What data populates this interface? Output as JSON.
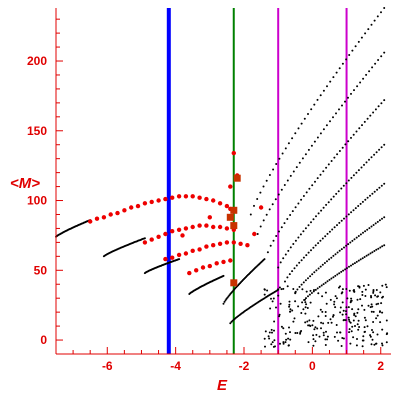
{
  "chart_data": {
    "type": "scatter",
    "title": "",
    "xlabel": "E",
    "ylabel": "<M>",
    "xlim": [
      -7.5,
      2.3
    ],
    "ylim": [
      -10,
      238
    ],
    "xticks": [
      -6,
      -4,
      -2,
      0,
      2
    ],
    "yticks": [
      0,
      50,
      100,
      150,
      200
    ],
    "colors": {
      "axis": "#e00000",
      "band_points": "#000000",
      "highlight_points": "#ee0000",
      "highlight_markers": "#c83200"
    },
    "vertical_lines": [
      {
        "x": -4.2,
        "color": "#0000ff"
      },
      {
        "x": -2.3,
        "color": "#008000"
      },
      {
        "x": -1.0,
        "color": "#cc00cc"
      },
      {
        "x": 1.0,
        "color": "#cc00cc"
      }
    ],
    "bands": [
      {
        "x_start": -7.5,
        "x_end": -6.5,
        "y_start": 74,
        "y_end": 86
      },
      {
        "x_start": -6.1,
        "x_end": -4.9,
        "y_start": 60,
        "y_end": 73
      },
      {
        "x_start": -4.9,
        "x_end": -3.9,
        "y_start": 48,
        "y_end": 58
      },
      {
        "x_start": -3.6,
        "x_end": -2.6,
        "y_start": 33,
        "y_end": 46
      },
      {
        "x_start": -1.8,
        "x_end": 2.1,
        "y_start": 90,
        "y_end": 238
      },
      {
        "x_start": -1.6,
        "x_end": 2.1,
        "y_start": 76,
        "y_end": 206
      },
      {
        "x_start": -1.3,
        "x_end": 2.1,
        "y_start": 63,
        "y_end": 172
      },
      {
        "x_start": -1.0,
        "x_end": 2.1,
        "y_start": 52,
        "y_end": 140
      },
      {
        "x_start": -0.8,
        "x_end": 2.1,
        "y_start": 42,
        "y_end": 112
      },
      {
        "x_start": -0.5,
        "x_end": 2.1,
        "y_start": 34,
        "y_end": 88
      },
      {
        "x_start": -0.3,
        "x_end": 2.1,
        "y_start": 27,
        "y_end": 68
      },
      {
        "x_start": -2.6,
        "x_end": -1.4,
        "y_start": 26,
        "y_end": 58
      },
      {
        "x_start": -2.4,
        "x_end": -1.0,
        "y_start": 12,
        "y_end": 36
      }
    ],
    "highlight_points": [
      {
        "x": -6.5,
        "y": 85
      },
      {
        "x": -6.3,
        "y": 87
      },
      {
        "x": -6.1,
        "y": 88
      },
      {
        "x": -5.9,
        "y": 90
      },
      {
        "x": -5.7,
        "y": 91
      },
      {
        "x": -5.5,
        "y": 93
      },
      {
        "x": -5.3,
        "y": 95
      },
      {
        "x": -5.1,
        "y": 96
      },
      {
        "x": -4.9,
        "y": 98
      },
      {
        "x": -4.7,
        "y": 99
      },
      {
        "x": -4.5,
        "y": 100
      },
      {
        "x": -4.3,
        "y": 101
      },
      {
        "x": -4.1,
        "y": 102
      },
      {
        "x": -3.9,
        "y": 103
      },
      {
        "x": -3.7,
        "y": 103
      },
      {
        "x": -3.5,
        "y": 103
      },
      {
        "x": -3.3,
        "y": 102
      },
      {
        "x": -3.1,
        "y": 101
      },
      {
        "x": -2.9,
        "y": 100
      },
      {
        "x": -2.7,
        "y": 98
      },
      {
        "x": -2.5,
        "y": 96
      },
      {
        "x": -2.4,
        "y": 94
      },
      {
        "x": -4.9,
        "y": 70
      },
      {
        "x": -4.7,
        "y": 72
      },
      {
        "x": -4.5,
        "y": 74
      },
      {
        "x": -4.3,
        "y": 76
      },
      {
        "x": -4.1,
        "y": 78
      },
      {
        "x": -3.9,
        "y": 79
      },
      {
        "x": -3.7,
        "y": 80
      },
      {
        "x": -3.5,
        "y": 81
      },
      {
        "x": -3.3,
        "y": 82
      },
      {
        "x": -3.1,
        "y": 82
      },
      {
        "x": -2.9,
        "y": 81
      },
      {
        "x": -2.7,
        "y": 81
      },
      {
        "x": -2.5,
        "y": 80
      },
      {
        "x": -2.3,
        "y": 79
      },
      {
        "x": -4.3,
        "y": 58
      },
      {
        "x": -4.1,
        "y": 59
      },
      {
        "x": -3.9,
        "y": 61
      },
      {
        "x": -3.7,
        "y": 62
      },
      {
        "x": -3.5,
        "y": 64
      },
      {
        "x": -3.3,
        "y": 65
      },
      {
        "x": -3.1,
        "y": 67
      },
      {
        "x": -2.9,
        "y": 68
      },
      {
        "x": -2.7,
        "y": 69
      },
      {
        "x": -2.5,
        "y": 70
      },
      {
        "x": -2.3,
        "y": 70
      },
      {
        "x": -2.1,
        "y": 69
      },
      {
        "x": -1.9,
        "y": 68
      },
      {
        "x": -3.6,
        "y": 48
      },
      {
        "x": -3.4,
        "y": 50
      },
      {
        "x": -3.2,
        "y": 52
      },
      {
        "x": -3.0,
        "y": 53
      },
      {
        "x": -2.8,
        "y": 55
      },
      {
        "x": -2.6,
        "y": 56
      },
      {
        "x": -2.4,
        "y": 57
      },
      {
        "x": -2.3,
        "y": 134
      },
      {
        "x": -2.2,
        "y": 118
      },
      {
        "x": -2.4,
        "y": 110
      },
      {
        "x": -1.7,
        "y": 76
      },
      {
        "x": -1.5,
        "y": 95
      },
      {
        "x": -3.0,
        "y": 88
      },
      {
        "x": -3.8,
        "y": 75
      }
    ],
    "highlight_markers": [
      {
        "x": -2.3,
        "y": 93
      },
      {
        "x": -2.4,
        "y": 88
      },
      {
        "x": -2.3,
        "y": 82
      },
      {
        "x": -2.3,
        "y": 41
      },
      {
        "x": -2.2,
        "y": 116
      }
    ]
  }
}
